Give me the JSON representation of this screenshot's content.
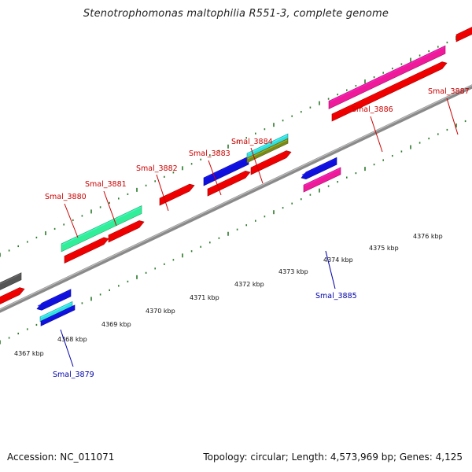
{
  "title": "Stenotrophomonas maltophilia R551-3, complete genome",
  "footer": {
    "accession": "Accession: NC_011071",
    "summary": "Topology: circular; Length: 4,573,969 bp; Genes: 4,125"
  },
  "colors": {
    "backbone": "#8a8a8a",
    "tick": "#2a7a2a",
    "plus_strand_label": "#cc0000",
    "minus_strand_label": "#0000aa",
    "red": "#ee0000",
    "magenta": "#ee1a9a",
    "blue": "#1010dd",
    "teal": "#33ee99",
    "cyan": "#33dddd",
    "olive": "#7a8a1a",
    "grey": "#555555"
  },
  "scale_labels": [
    {
      "kbp": 4367,
      "text": "4367 kbp"
    },
    {
      "kbp": 4368,
      "text": "4368 kbp"
    },
    {
      "kbp": 4369,
      "text": "4369 kbp"
    },
    {
      "kbp": 4370,
      "text": "4370 kbp"
    },
    {
      "kbp": 4371,
      "text": "4371 kbp"
    },
    {
      "kbp": 4372,
      "text": "4372 kbp"
    },
    {
      "kbp": 4373,
      "text": "4373 kbp"
    },
    {
      "kbp": 4374,
      "text": "4374 kbp"
    },
    {
      "kbp": 4375,
      "text": "4375 kbp"
    },
    {
      "kbp": 4376,
      "text": "4376 kbp"
    }
  ],
  "gene_labels": [
    {
      "name": "Smal_3879",
      "strand": "minus"
    },
    {
      "name": "Smal_3880",
      "strand": "plus"
    },
    {
      "name": "Smal_3881",
      "strand": "plus"
    },
    {
      "name": "Smal_3882",
      "strand": "plus"
    },
    {
      "name": "Smal_3883",
      "strand": "plus"
    },
    {
      "name": "Smal_3884",
      "strand": "plus"
    },
    {
      "name": "Smal_3885",
      "strand": "minus"
    },
    {
      "name": "Smal_3886",
      "strand": "plus"
    },
    {
      "name": "Smal_3887",
      "strand": "plus"
    }
  ]
}
